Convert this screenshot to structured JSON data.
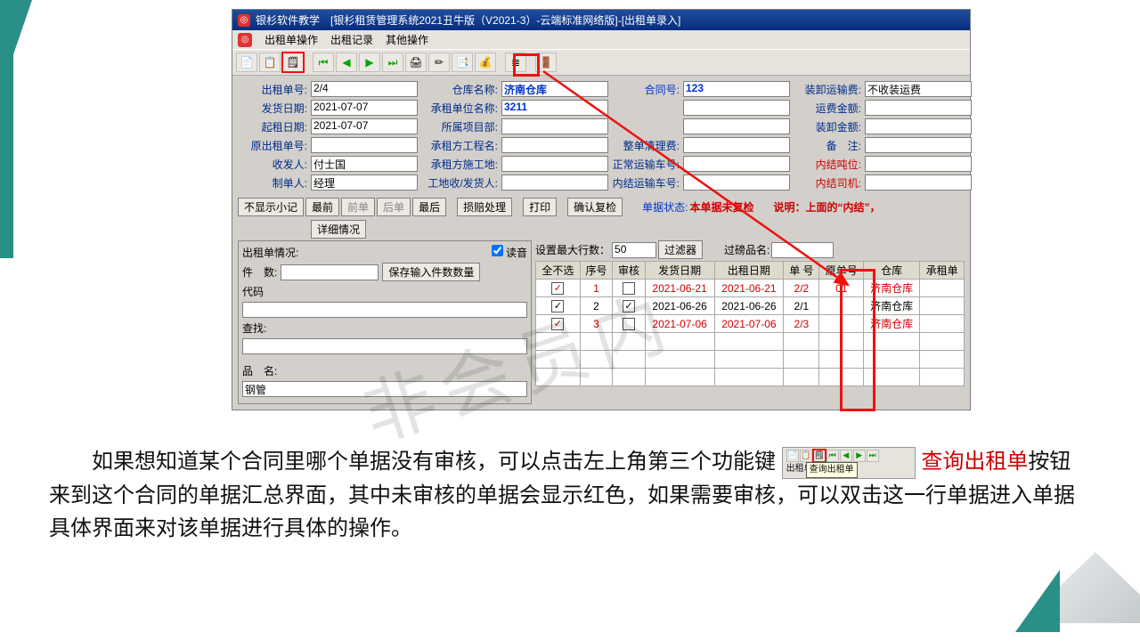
{
  "title": "银杉软件教学　[银杉租赁管理系统2021丑牛版（V2021-3）-云端标准网络版]-[出租单录入]",
  "menus": [
    "出租单操作",
    "出租记录",
    "其他操作"
  ],
  "toolbar_icons": [
    "📄",
    "📋",
    "🗒",
    "",
    "⏮",
    "◀",
    "▶",
    "⏭",
    "🖨",
    "✏",
    "📑",
    "💰",
    "",
    "≣",
    "",
    "🚪"
  ],
  "highlighted_toolbar_index": 2,
  "form": {
    "r1": {
      "l1": "出租单号:",
      "v1": "2/4",
      "l2": "仓库名称:",
      "v2": "济南仓库",
      "l3": "合同号:",
      "v3": "123",
      "l4": "装卸运输费:",
      "v4": "不收装运费"
    },
    "r2": {
      "l1": "发货日期:",
      "v1": "2021-07-07",
      "l2": "承租单位名称:",
      "v2": "3211",
      "l3": "",
      "v3": "",
      "l4": "运费金额:",
      "v4": ""
    },
    "r3": {
      "l1": "起租日期:",
      "v1": "2021-07-07",
      "l2": "所属项目部:",
      "v2": "",
      "l3": "",
      "v3": "",
      "l4": "装卸金额:",
      "v4": ""
    },
    "r4": {
      "l1": "原出租单号:",
      "v1": "",
      "l2": "承租方工程名:",
      "v2": "",
      "l3": "整单清理费:",
      "v3": "",
      "l4": "备　注:",
      "v4": ""
    },
    "r5": {
      "l1": "收发人:",
      "v1": "付士国",
      "l2": "承租方施工地:",
      "v2": "",
      "l3": "正常运输车号:",
      "v3": "",
      "l4": "内结吨位:",
      "v4": ""
    },
    "r6": {
      "l1": "制单人:",
      "v1": "经理",
      "l2": "工地收/发货人:",
      "v2": "",
      "l3": "内结运输车号:",
      "v3": "",
      "l4": "内结司机:",
      "v4": ""
    }
  },
  "btnrow1": [
    "不显示小记",
    "最前",
    "前单",
    "后单",
    "最后",
    "损赔处理",
    "打印",
    "确认复检"
  ],
  "status_label": "单据状态:",
  "status_value": "本单据未复检",
  "note_label": "说明：",
  "note_value": "上面的“内结”，",
  "detail_btn": "详细情况",
  "left": {
    "group_label": "出租单情况:",
    "read_sound": "读音",
    "count_label": "件　数:",
    "save_btn": "保存输入件数数量",
    "code_label": "代码",
    "search_label": "查找:",
    "name_label": "品　名:",
    "name_value": "钢管"
  },
  "right": {
    "max_rows_label": "设置最大行数：",
    "max_rows_value": "50",
    "filter_btn": "过滤器",
    "weigh_label": "过磅品名:",
    "cols": [
      "全不选",
      "序号",
      "审核",
      "发货日期",
      "出租日期",
      "单 号",
      "原单号",
      "仓库",
      "承租单"
    ],
    "rows": [
      {
        "sel": true,
        "no": "1",
        "audit": false,
        "d1": "2021-06-21",
        "d2": "2021-06-21",
        "num": "2/2",
        "orig": "01",
        "wh": "济南仓库",
        "red": true
      },
      {
        "sel": true,
        "no": "2",
        "audit": true,
        "d1": "2021-06-26",
        "d2": "2021-06-26",
        "num": "2/1",
        "orig": "",
        "wh": "济南仓库",
        "red": false
      },
      {
        "sel": true,
        "no": "3",
        "audit": false,
        "d1": "2021-07-06",
        "d2": "2021-07-06",
        "num": "2/3",
        "orig": "",
        "wh": "济南仓库",
        "red": true
      }
    ]
  },
  "instruction": {
    "p1a": "如果想知道某个合同里哪个单据没有审核，可以点击左上角第三个功能键 ",
    "hl": "查询出租单",
    "p1b": "按钮来到这个合同的单据汇总界面，其中未审核的单据会显示红色，如果需要审核，可以双击这一行单据进入单据具体界面来对该单据进行具体的操作。",
    "tooltip": "查询出租单",
    "mini_prefix": "出租单"
  },
  "watermark": "非会员内"
}
